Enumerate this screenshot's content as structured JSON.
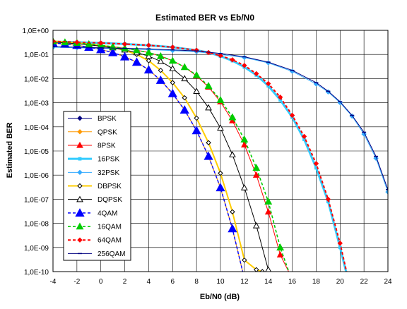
{
  "chart_data": {
    "type": "line",
    "title": "Estimated BER vs Eb/N0",
    "xlabel": "Eb/N0 (dB)",
    "ylabel": "Estimated BER",
    "xlim": [
      -4,
      24
    ],
    "ylim_log10": [
      -10,
      0
    ],
    "y_scale": "log",
    "grid": true,
    "legend_position": "left-bottom inside plot",
    "x_ticks": [
      "-4",
      "-2",
      "0",
      "2",
      "4",
      "6",
      "8",
      "10",
      "12",
      "14",
      "16",
      "18",
      "20",
      "22",
      "24"
    ],
    "y_ticks": [
      "1,0E+00",
      "1,0E-01",
      "1,0E-02",
      "1,0E-03",
      "1,0E-04",
      "1,0E-05",
      "1,0E-06",
      "1,0E-07",
      "1,0E-08",
      "1,0E-09",
      "1,0E-10"
    ],
    "series": [
      {
        "name": "BPSK",
        "color": "#000080",
        "dash": "solid",
        "marker": "diamond",
        "x": [
          -4,
          -3,
          -2,
          -1,
          0,
          1,
          2,
          3,
          4,
          5,
          6,
          7,
          8,
          9,
          10,
          11,
          12
        ],
        "y": [
          0.3,
          0.27,
          0.24,
          0.2,
          0.16,
          0.12,
          0.08,
          0.048,
          0.023,
          0.0085,
          0.0024,
          0.0005,
          7e-05,
          6e-06,
          3e-07,
          6e-09,
          5e-11
        ]
      },
      {
        "name": "QPSK",
        "color": "#FF9900",
        "dash": "solid",
        "marker": "diamond",
        "x": [
          -4,
          -3,
          -2,
          -1,
          0,
          1,
          2,
          3,
          4,
          5,
          6,
          7,
          8,
          9,
          10,
          11,
          12
        ],
        "y": [
          0.3,
          0.27,
          0.24,
          0.2,
          0.16,
          0.12,
          0.08,
          0.048,
          0.023,
          0.0085,
          0.0024,
          0.0005,
          7e-05,
          6e-06,
          3e-07,
          6e-09,
          5e-11
        ]
      },
      {
        "name": "8PSK",
        "color": "#FF0000",
        "dash": "solid",
        "marker": "triangle",
        "x": [
          -4,
          -3,
          -2,
          -1,
          0,
          1,
          2,
          3,
          4,
          5,
          6,
          7,
          8,
          9,
          10,
          11,
          12,
          13,
          14,
          15,
          16
        ],
        "y": [
          0.35,
          0.32,
          0.3,
          0.27,
          0.24,
          0.21,
          0.18,
          0.15,
          0.12,
          0.085,
          0.055,
          0.03,
          0.013,
          0.0045,
          0.0011,
          0.00018,
          1.8e-05,
          1e-06,
          3e-08,
          5e-10,
          5e-11
        ]
      },
      {
        "name": "16PSK",
        "color": "#33CCFF",
        "dash": "solid",
        "marker": "square",
        "x": [
          -4,
          -2,
          0,
          2,
          4,
          6,
          8,
          9,
          10,
          11,
          12,
          13,
          14,
          15,
          16,
          17,
          18,
          19,
          20,
          21
        ],
        "y": [
          0.34,
          0.32,
          0.3,
          0.27,
          0.24,
          0.2,
          0.15,
          0.12,
          0.085,
          0.055,
          0.03,
          0.014,
          0.005,
          0.0013,
          0.00025,
          3e-05,
          2e-06,
          8e-08,
          1e-09,
          1e-11
        ]
      },
      {
        "name": "32PSK",
        "color": "#33AAFF",
        "dash": "solid",
        "marker": "diamond",
        "x": [
          -4,
          -2,
          0,
          2,
          4,
          6,
          8,
          10,
          12,
          14,
          16,
          18,
          19,
          20,
          21,
          22,
          23,
          24
        ],
        "y": [
          0.2,
          0.19,
          0.18,
          0.17,
          0.16,
          0.145,
          0.13,
          0.1,
          0.075,
          0.045,
          0.02,
          0.006,
          0.0028,
          0.001,
          0.00028,
          5e-05,
          5e-06,
          2e-07
        ]
      },
      {
        "name": "DBPSK",
        "color": "#FFCC00",
        "dash": "solid",
        "marker": "diamond-open",
        "x": [
          -4,
          -3,
          -2,
          -1,
          0,
          1,
          2,
          3,
          4,
          5,
          6,
          7,
          8,
          9,
          10,
          11,
          12,
          13,
          13.5
        ],
        "y": [
          0.36,
          0.33,
          0.3,
          0.27,
          0.24,
          0.2,
          0.15,
          0.1,
          0.055,
          0.022,
          0.0068,
          0.0016,
          0.00023,
          2.2e-05,
          1.2e-06,
          3e-08,
          3e-10,
          1.2e-10,
          1e-10
        ]
      },
      {
        "name": "DQPSK",
        "color": "#000000",
        "dash": "solid",
        "marker": "triangle-open",
        "x": [
          -4,
          -3,
          -2,
          -1,
          0,
          1,
          2,
          3,
          4,
          5,
          6,
          7,
          8,
          9,
          10,
          11,
          12,
          13,
          14,
          15,
          15.5
        ],
        "y": [
          0.33,
          0.3,
          0.28,
          0.25,
          0.22,
          0.19,
          0.155,
          0.12,
          0.085,
          0.052,
          0.026,
          0.01,
          0.003,
          0.00062,
          9e-05,
          7e-06,
          3e-07,
          8e-09,
          1.2e-10,
          2e-11,
          1e-11
        ]
      },
      {
        "name": "4QAM",
        "color": "#0000FF",
        "dash": "dash",
        "marker": "triangle",
        "x": [
          -4,
          -3,
          -2,
          -1,
          0,
          1,
          2,
          3,
          4,
          5,
          6,
          7,
          8,
          9,
          10,
          11,
          12
        ],
        "y": [
          0.3,
          0.27,
          0.24,
          0.2,
          0.16,
          0.12,
          0.08,
          0.048,
          0.023,
          0.0085,
          0.0024,
          0.0005,
          7e-05,
          6e-06,
          3e-07,
          6e-09,
          5e-11
        ]
      },
      {
        "name": "16QAM",
        "color": "#00CC00",
        "dash": "dash",
        "marker": "triangle",
        "x": [
          -4,
          -3,
          -2,
          -1,
          0,
          1,
          2,
          3,
          4,
          5,
          6,
          7,
          8,
          9,
          10,
          11,
          12,
          13,
          14,
          15,
          16,
          17
        ],
        "y": [
          0.35,
          0.32,
          0.3,
          0.27,
          0.24,
          0.21,
          0.18,
          0.15,
          0.12,
          0.085,
          0.055,
          0.03,
          0.014,
          0.005,
          0.0013,
          0.00025,
          3e-05,
          2e-06,
          8e-08,
          1e-09,
          4e-11,
          1e-11
        ]
      },
      {
        "name": "64QAM",
        "color": "#FF0000",
        "dash": "dash",
        "marker": "diamond",
        "x": [
          -4,
          -2,
          0,
          2,
          4,
          6,
          8,
          9,
          10,
          11,
          12,
          13,
          14,
          15,
          16,
          17,
          18,
          19,
          20,
          21
        ],
        "y": [
          0.35,
          0.32,
          0.3,
          0.27,
          0.24,
          0.2,
          0.15,
          0.12,
          0.09,
          0.06,
          0.035,
          0.016,
          0.0062,
          0.0017,
          0.0003,
          4e-05,
          3e-06,
          1e-07,
          1.5e-09,
          1e-11
        ]
      },
      {
        "name": "256QAM",
        "color": "#000080",
        "dash": "solid",
        "marker": "dash",
        "x": [
          -4,
          -2,
          0,
          2,
          4,
          6,
          8,
          10,
          12,
          14,
          16,
          18,
          19,
          20,
          21,
          22,
          23,
          24
        ],
        "y": [
          0.21,
          0.2,
          0.19,
          0.18,
          0.17,
          0.155,
          0.14,
          0.11,
          0.08,
          0.048,
          0.022,
          0.0068,
          0.003,
          0.0011,
          0.0003,
          6e-05,
          6e-06,
          2.5e-07
        ]
      }
    ]
  }
}
